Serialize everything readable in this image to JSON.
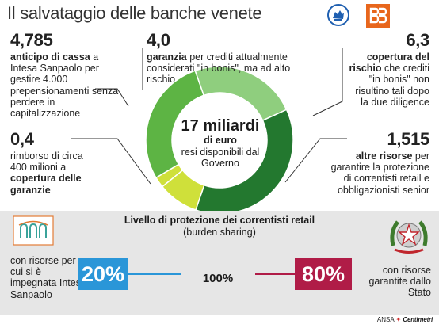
{
  "title": "Il salvataggio delle banche venete",
  "colors": {
    "dark_green": "#23782f",
    "mid_green": "#5db444",
    "light_green": "#8fce7e",
    "lime": "#cfe03a",
    "blue": "#2a96d8",
    "crimson": "#b01c47",
    "grey_band": "#e6e6e6"
  },
  "logos": {
    "left_bank": "Banca Popolare di Vicenza (lion icon)",
    "right_bank": "Veneto Banca (VB icon)",
    "intesa": "Intesa Sanpaolo logo",
    "stato": "Emblem of Italy"
  },
  "donut_center": {
    "amount": "17 miliardi",
    "unit": "di euro",
    "desc": "resi disponibili dal Governo"
  },
  "items": {
    "top_left": {
      "value": "4,785",
      "lead": "anticipo di cassa",
      "rest": "a Intesa Sanpaolo per gestire 4.000 prepensionamenti senza perdere in capitalizzazione"
    },
    "top_center": {
      "value": "4,0",
      "lead": "garanzia",
      "rest": "per crediti attualmente considerati \"in bonis\", ma ad alto rischio"
    },
    "top_right": {
      "value": "6,3",
      "lead": "copertura del rischio",
      "rest": "che crediti \"in bonis\" non risultino tali dopo la due diligence"
    },
    "mid_left": {
      "value": "0,4",
      "pre": "rimborso di circa 400 milioni a",
      "lead": "copertura delle garanzie"
    },
    "mid_right": {
      "value": "1,515",
      "lead": "altre risorse",
      "rest": "per garantire la protezione di correntisti retail e obbligazionisti senior"
    }
  },
  "bottom": {
    "heading": "Livello di protezione dei correntisti retail",
    "subheading": "(burden sharing)",
    "left_caption": "con risorse per cui si è impegnata Intesa Sanpaolo",
    "right_caption": "con risorse garantite dallo Stato",
    "left_pct": "20%",
    "right_pct": "80%",
    "center_pct": "100%"
  },
  "credit": {
    "ansa": "ANSA",
    "partner": "Centimetri"
  },
  "chart_data": [
    {
      "type": "pie",
      "title": "17 miliardi di euro",
      "categories": [
        "anticipo di cassa",
        "garanzia",
        "copertura del rischio",
        "altre risorse",
        "copertura delle garanzie"
      ],
      "values": [
        4.785,
        4.0,
        6.3,
        1.515,
        0.4
      ],
      "unit": "miliardi di euro"
    },
    {
      "type": "pie",
      "title": "Livello di protezione dei correntisti retail",
      "categories": [
        "Intesa Sanpaolo",
        "Stato"
      ],
      "values": [
        20,
        80
      ],
      "unit": "%"
    }
  ]
}
